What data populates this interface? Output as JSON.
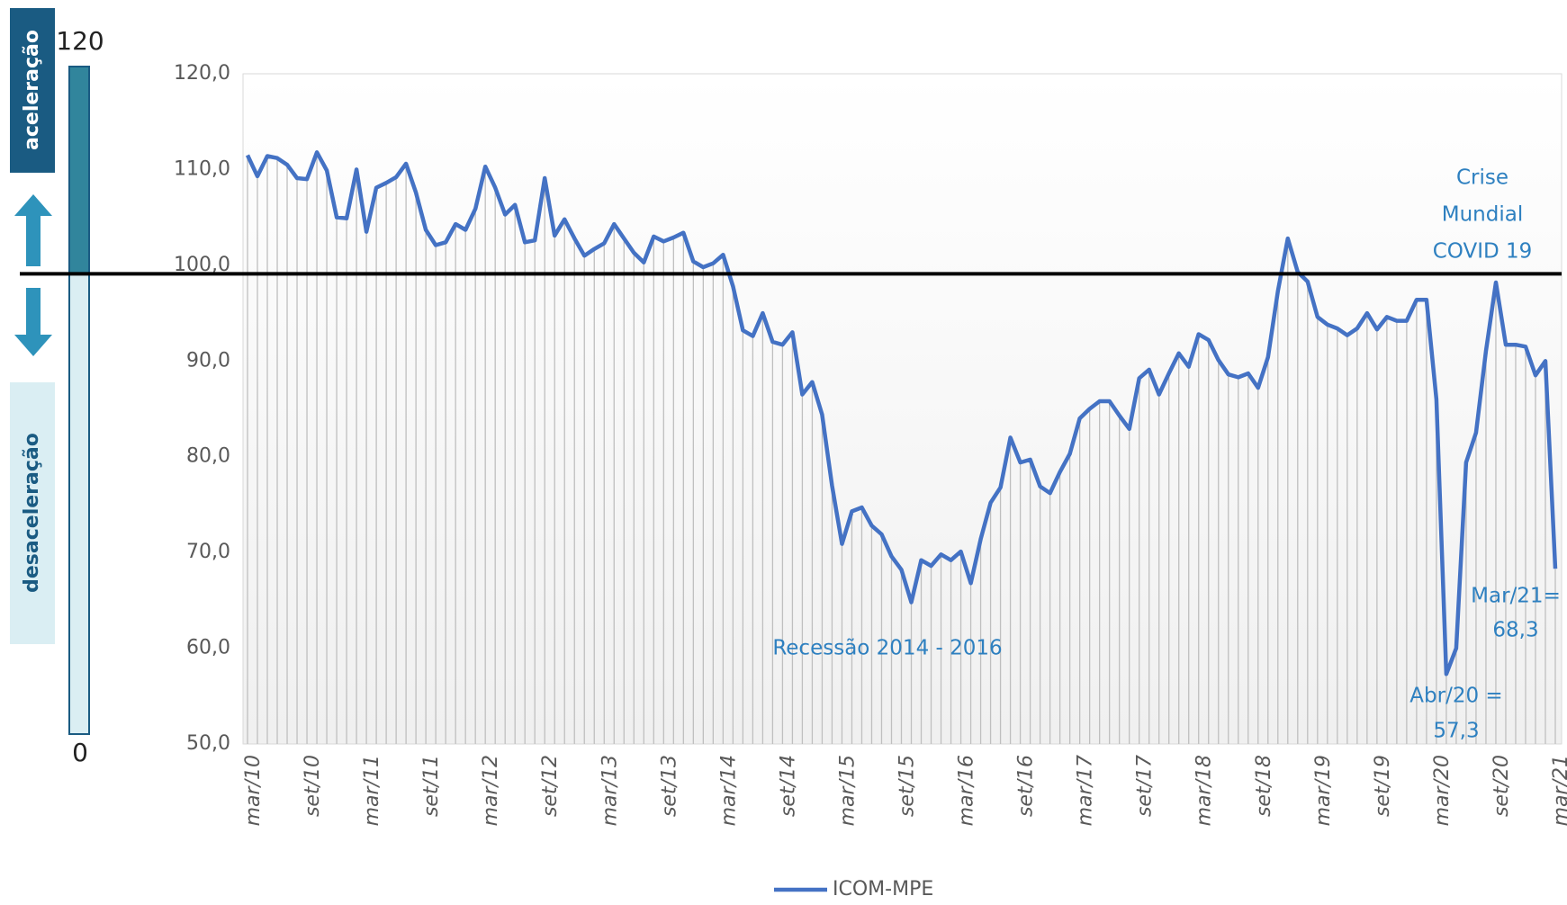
{
  "chart_data": {
    "type": "line",
    "categories": [
      "mar/10",
      null,
      null,
      null,
      null,
      null,
      "set/10",
      null,
      null,
      null,
      null,
      null,
      "mar/11",
      null,
      null,
      null,
      null,
      null,
      "set/11",
      null,
      null,
      null,
      null,
      null,
      "mar/12",
      null,
      null,
      null,
      null,
      null,
      "set/12",
      null,
      null,
      null,
      null,
      null,
      "mar/13",
      null,
      null,
      null,
      null,
      null,
      "set/13",
      null,
      null,
      null,
      null,
      null,
      "mar/14",
      null,
      null,
      null,
      null,
      null,
      "set/14",
      null,
      null,
      null,
      null,
      null,
      "mar/15",
      null,
      null,
      null,
      null,
      null,
      "set/15",
      null,
      null,
      null,
      null,
      null,
      "mar/16",
      null,
      null,
      null,
      null,
      null,
      "set/16",
      null,
      null,
      null,
      null,
      null,
      "mar/17",
      null,
      null,
      null,
      null,
      null,
      "set/17",
      null,
      null,
      null,
      null,
      null,
      "mar/18",
      null,
      null,
      null,
      null,
      null,
      "set/18",
      null,
      null,
      null,
      null,
      null,
      "mar/19",
      null,
      null,
      null,
      null,
      null,
      "set/19",
      null,
      null,
      null,
      null,
      null,
      "mar/20",
      null,
      null,
      null,
      null,
      null,
      "set/20",
      null,
      null,
      null,
      null,
      null,
      "mar/21"
    ],
    "series": [
      {
        "name": "ICOM-MPE",
        "color": "#4472c4",
        "values": [
          111.5,
          109.3,
          111.4,
          111.2,
          110.5,
          109.1,
          109.0,
          111.8,
          109.9,
          105.0,
          104.9,
          110.0,
          103.5,
          108.1,
          108.6,
          109.2,
          110.6,
          107.6,
          103.7,
          102.1,
          102.4,
          104.3,
          103.7,
          105.9,
          110.3,
          108.1,
          105.3,
          106.3,
          102.4,
          102.6,
          109.1,
          103.1,
          104.8,
          102.8,
          101.0,
          101.7,
          102.3,
          104.3,
          102.8,
          101.3,
          100.3,
          103.0,
          102.5,
          102.9,
          103.4,
          100.4,
          99.8,
          100.2,
          101.1,
          97.8,
          93.2,
          92.6,
          95.0,
          92.0,
          91.7,
          93.0,
          86.5,
          87.8,
          84.4,
          77.0,
          70.9,
          74.3,
          74.7,
          72.8,
          71.9,
          69.6,
          68.2,
          64.8,
          69.2,
          68.6,
          69.8,
          69.2,
          70.1,
          66.8,
          71.4,
          75.2,
          76.8,
          82.0,
          79.4,
          79.7,
          76.9,
          76.2,
          78.4,
          80.3,
          84.0,
          85.0,
          85.8,
          85.8,
          84.3,
          82.9,
          88.2,
          89.1,
          86.5,
          88.7,
          90.8,
          89.4,
          92.8,
          92.2,
          90.1,
          88.6,
          88.3,
          88.7,
          87.2,
          90.4,
          97.3,
          102.8,
          99.3,
          98.3,
          94.6,
          93.8,
          93.4,
          92.7,
          93.4,
          95.0,
          93.3,
          94.6,
          94.2,
          94.2,
          96.4,
          96.4,
          86.0,
          57.3,
          60.0,
          79.4,
          82.5,
          91.0,
          98.2,
          91.7,
          91.7,
          91.5,
          88.5,
          90.0,
          68.3
        ]
      }
    ],
    "ylim": [
      50,
      120
    ],
    "yticks": [
      {
        "value": 50,
        "label": "50,0"
      },
      {
        "value": 60,
        "label": "60,0"
      },
      {
        "value": 70,
        "label": "70,0"
      },
      {
        "value": 80,
        "label": "80,0"
      },
      {
        "value": 90,
        "label": "90,0"
      },
      {
        "value": 100,
        "label": "100,0"
      },
      {
        "value": 110,
        "label": "110,0"
      },
      {
        "value": 120,
        "label": "120,0"
      }
    ],
    "reference_line": 99.1,
    "drop_lines": true,
    "legend": "bottom",
    "annotations": [
      {
        "lines": [
          "Crise",
          "Mundial",
          "COVID 19"
        ]
      },
      {
        "lines": [
          "Recessão 2014 - 2016"
        ]
      },
      {
        "lines": [
          "Abr/20 =",
          "57,3"
        ]
      },
      {
        "lines": [
          "Mar/21=",
          "68,3"
        ]
      }
    ],
    "gauge": {
      "max": 120,
      "min": 0,
      "max_label": "120",
      "min_label": "0",
      "upper_text": "aceleração",
      "lower_text": "desaceleração"
    }
  }
}
